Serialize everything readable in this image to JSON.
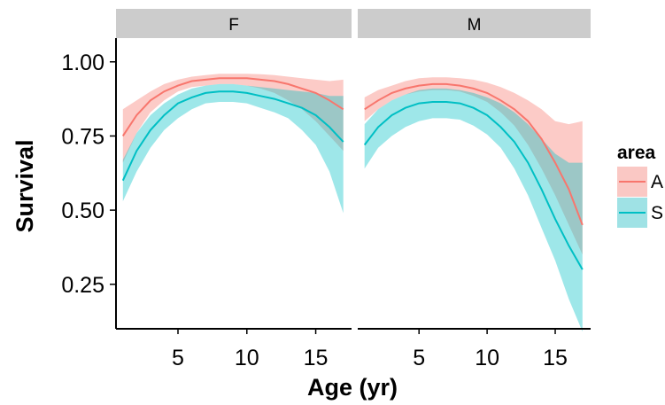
{
  "chart_data": {
    "type": "line",
    "title": "",
    "xlabel": "Age (yr)",
    "ylabel": "Survival",
    "xlim": [
      0.5,
      17.6
    ],
    "ylim": [
      0.1,
      1.08
    ],
    "x_ticks": [
      5,
      10,
      15
    ],
    "y_ticks": [
      0.25,
      0.5,
      0.75,
      1.0
    ],
    "y_tick_labels": [
      "0.25",
      "0.50",
      "0.75",
      "1.00"
    ],
    "grid": false,
    "legend": {
      "title": "area",
      "position": "right",
      "entries": [
        {
          "label": "A",
          "line_color": "#F8766D",
          "fill_color": "#FAC8C4"
        },
        {
          "label": "S",
          "line_color": "#00BFC4",
          "fill_color": "#9FE2E5"
        }
      ]
    },
    "facets": [
      {
        "label": "F",
        "series": [
          {
            "name": "A",
            "x": [
              1,
              2,
              3,
              4,
              5,
              6,
              7,
              8,
              9,
              10,
              11,
              12,
              13,
              14,
              15,
              16,
              17
            ],
            "y": [
              0.75,
              0.82,
              0.87,
              0.9,
              0.92,
              0.935,
              0.94,
              0.945,
              0.945,
              0.945,
              0.94,
              0.935,
              0.925,
              0.91,
              0.895,
              0.87,
              0.84
            ],
            "lower": [
              0.66,
              0.76,
              0.83,
              0.87,
              0.9,
              0.915,
              0.92,
              0.925,
              0.925,
              0.92,
              0.91,
              0.895,
              0.87,
              0.84,
              0.8,
              0.75,
              0.7
            ],
            "upper": [
              0.84,
              0.87,
              0.9,
              0.925,
              0.94,
              0.95,
              0.955,
              0.96,
              0.96,
              0.96,
              0.958,
              0.955,
              0.95,
              0.945,
              0.94,
              0.935,
              0.94
            ]
          },
          {
            "name": "S",
            "x": [
              1,
              2,
              3,
              4,
              5,
              6,
              7,
              8,
              9,
              10,
              11,
              12,
              13,
              14,
              15,
              16,
              17
            ],
            "y": [
              0.6,
              0.7,
              0.77,
              0.82,
              0.86,
              0.88,
              0.895,
              0.9,
              0.9,
              0.895,
              0.885,
              0.875,
              0.86,
              0.845,
              0.82,
              0.78,
              0.73
            ],
            "lower": [
              0.53,
              0.63,
              0.71,
              0.77,
              0.81,
              0.84,
              0.86,
              0.865,
              0.865,
              0.86,
              0.845,
              0.83,
              0.81,
              0.77,
              0.72,
              0.63,
              0.49
            ],
            "upper": [
              0.67,
              0.76,
              0.82,
              0.86,
              0.89,
              0.91,
              0.92,
              0.925,
              0.925,
              0.92,
              0.915,
              0.91,
              0.905,
              0.9,
              0.895,
              0.885,
              0.885
            ]
          }
        ]
      },
      {
        "label": "M",
        "series": [
          {
            "name": "A",
            "x": [
              1,
              2,
              3,
              4,
              5,
              6,
              7,
              8,
              9,
              10,
              11,
              12,
              13,
              14,
              15,
              16,
              17
            ],
            "y": [
              0.84,
              0.87,
              0.895,
              0.91,
              0.92,
              0.925,
              0.925,
              0.92,
              0.91,
              0.895,
              0.87,
              0.84,
              0.8,
              0.74,
              0.66,
              0.57,
              0.45
            ],
            "lower": [
              0.8,
              0.84,
              0.87,
              0.89,
              0.9,
              0.905,
              0.905,
              0.9,
              0.885,
              0.865,
              0.83,
              0.785,
              0.72,
              0.64,
              0.55,
              0.45,
              0.35
            ],
            "upper": [
              0.88,
              0.905,
              0.92,
              0.935,
              0.945,
              0.948,
              0.948,
              0.945,
              0.94,
              0.93,
              0.915,
              0.895,
              0.87,
              0.84,
              0.8,
              0.79,
              0.8
            ]
          },
          {
            "name": "S",
            "x": [
              1,
              2,
              3,
              4,
              5,
              6,
              7,
              8,
              9,
              10,
              11,
              12,
              13,
              14,
              15,
              16,
              17
            ],
            "y": [
              0.72,
              0.78,
              0.82,
              0.845,
              0.86,
              0.865,
              0.865,
              0.86,
              0.845,
              0.82,
              0.78,
              0.73,
              0.66,
              0.57,
              0.47,
              0.38,
              0.3
            ],
            "lower": [
              0.64,
              0.71,
              0.75,
              0.78,
              0.8,
              0.81,
              0.81,
              0.805,
              0.785,
              0.755,
              0.71,
              0.64,
              0.55,
              0.44,
              0.33,
              0.2,
              0.09
            ],
            "upper": [
              0.79,
              0.84,
              0.87,
              0.89,
              0.905,
              0.91,
              0.91,
              0.905,
              0.895,
              0.88,
              0.86,
              0.83,
              0.79,
              0.74,
              0.69,
              0.66,
              0.66
            ]
          }
        ]
      }
    ]
  }
}
